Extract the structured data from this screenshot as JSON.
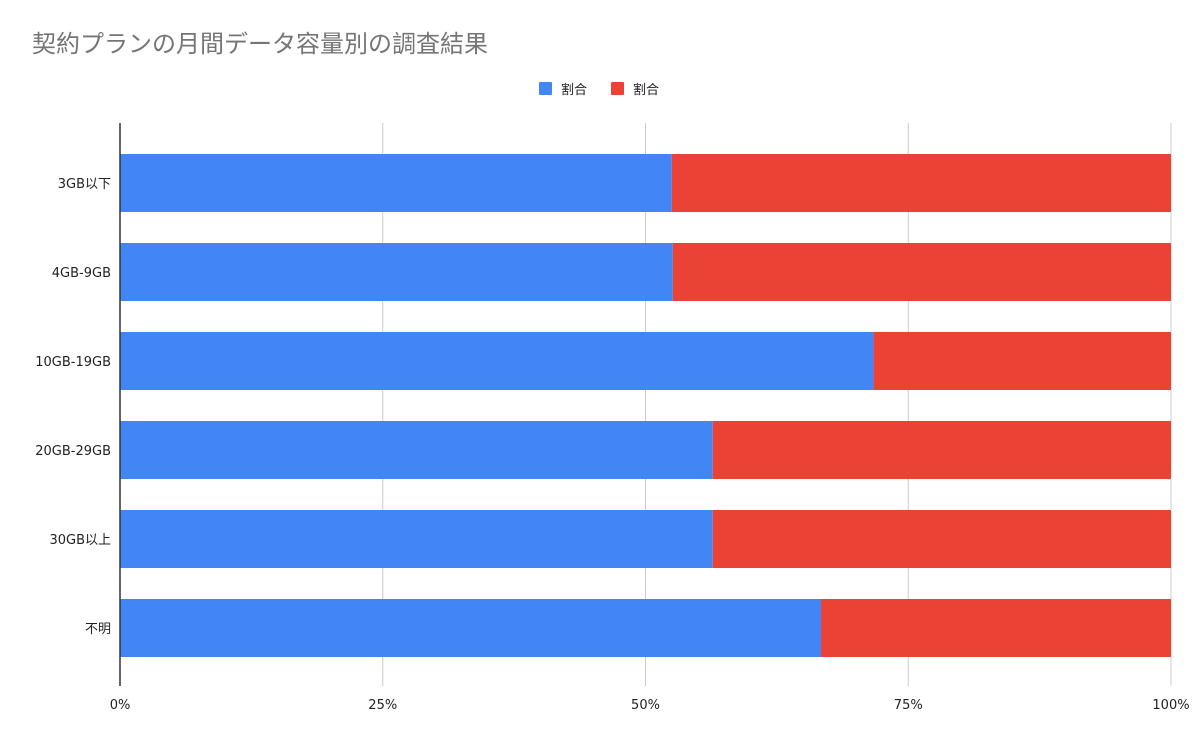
{
  "chart_data": {
    "type": "bar",
    "orientation": "horizontal",
    "stacked": "100%",
    "title": "契約プランの月間データ容量別の調査結果",
    "categories": [
      "3GB以下",
      "4GB-9GB",
      "10GB-19GB",
      "20GB-29GB",
      "30GB以上",
      "不明"
    ],
    "series": [
      {
        "name": "割合",
        "color": "#4285f4",
        "values": [
          52.5,
          52.6,
          71.7,
          56.4,
          56.4,
          66.7
        ]
      },
      {
        "name": "割合",
        "color": "#ea4335",
        "values": [
          47.5,
          47.4,
          28.3,
          43.6,
          43.6,
          33.3
        ]
      }
    ],
    "x_ticks": [
      "0%",
      "25%",
      "50%",
      "75%",
      "100%"
    ],
    "xlim": [
      0,
      100
    ],
    "grid": true,
    "legend_position": "top"
  }
}
